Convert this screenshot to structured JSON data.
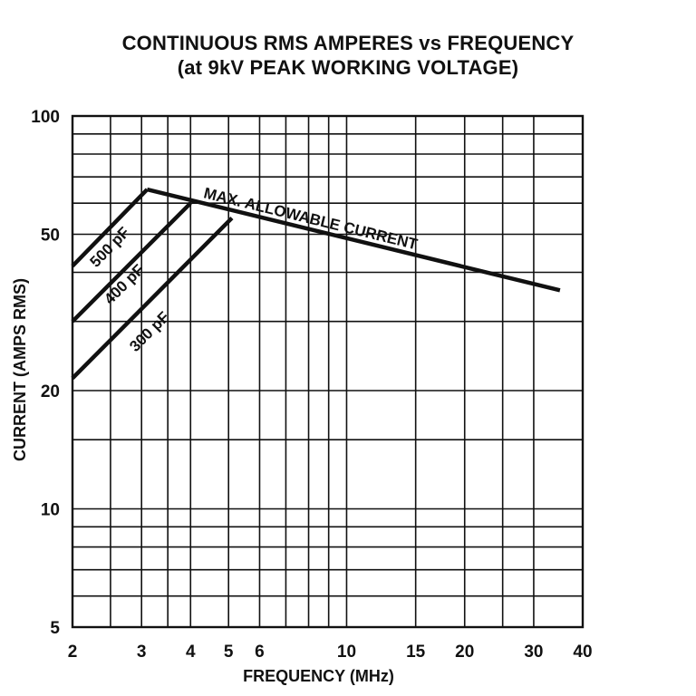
{
  "chart_data": {
    "type": "line",
    "title": "CONTINUOUS RMS AMPERES vs FREQUENCY",
    "subtitle": "(at 9kV PEAK WORKING VOLTAGE)",
    "xlabel": "FREQUENCY (MHz)",
    "ylabel": "CURRENT (AMPS RMS)",
    "x_scale": "log",
    "y_scale": "log",
    "xlim": [
      2,
      40
    ],
    "ylim": [
      5,
      100
    ],
    "x_ticks": [
      2,
      3,
      4,
      5,
      6,
      10,
      15,
      20,
      30,
      40
    ],
    "y_ticks": [
      5,
      10,
      20,
      50,
      100
    ],
    "x_grid": [
      2,
      2.5,
      3,
      3.5,
      4,
      5,
      6,
      7,
      8,
      9,
      10,
      15,
      20,
      25,
      30,
      40
    ],
    "y_grid": [
      5,
      6,
      7,
      8,
      9,
      10,
      15,
      20,
      30,
      40,
      50,
      60,
      70,
      80,
      90,
      100
    ],
    "grid": true,
    "series": [
      {
        "name": "MAX. ALLOWABLE CURRENT",
        "x": [
          3.1,
          35
        ],
        "y": [
          65,
          36
        ]
      },
      {
        "name": "500 pF",
        "x": [
          2,
          3.1
        ],
        "y": [
          41.5,
          65
        ]
      },
      {
        "name": "400 pF",
        "x": [
          2,
          4
        ],
        "y": [
          30,
          60
        ]
      },
      {
        "name": "300 pF",
        "x": [
          2,
          5.1
        ],
        "y": [
          21.5,
          55
        ]
      }
    ],
    "annotations": [
      {
        "text": "MAX. ALLOWABLE CURRENT",
        "x": 4.3,
        "y": 62
      },
      {
        "text": "500 pF",
        "x": 2.3,
        "y": 41
      },
      {
        "text": "400 pF",
        "x": 2.5,
        "y": 33
      },
      {
        "text": "300 pF",
        "x": 2.9,
        "y": 25
      }
    ]
  }
}
